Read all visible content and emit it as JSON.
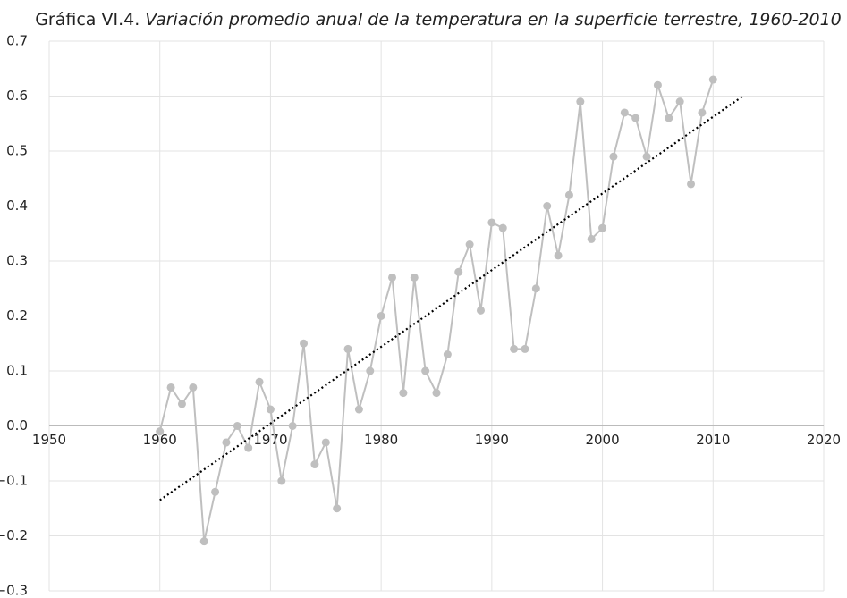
{
  "chart_data": {
    "type": "line",
    "title": "Gráfica VI.4.",
    "subtitle": "Variación promedio anual de la temperatura en la superficie terrestre, 1960-2010",
    "x": [
      1960,
      1961,
      1962,
      1963,
      1964,
      1965,
      1966,
      1967,
      1968,
      1969,
      1970,
      1971,
      1972,
      1973,
      1974,
      1975,
      1976,
      1977,
      1978,
      1979,
      1980,
      1981,
      1982,
      1983,
      1984,
      1985,
      1986,
      1987,
      1988,
      1989,
      1990,
      1991,
      1992,
      1993,
      1994,
      1995,
      1996,
      1997,
      1998,
      1999,
      2000,
      2001,
      2002,
      2003,
      2004,
      2005,
      2006,
      2007,
      2008,
      2009,
      2010
    ],
    "values": [
      -0.01,
      0.07,
      0.04,
      0.07,
      -0.21,
      -0.12,
      -0.03,
      0.0,
      -0.04,
      0.08,
      0.03,
      -0.1,
      0.0,
      0.15,
      -0.07,
      -0.03,
      -0.15,
      0.14,
      0.03,
      0.1,
      0.2,
      0.27,
      0.06,
      0.27,
      0.1,
      0.06,
      0.13,
      0.28,
      0.33,
      0.21,
      0.37,
      0.36,
      0.14,
      0.14,
      0.25,
      0.4,
      0.31,
      0.42,
      0.59,
      0.34,
      0.36,
      0.49,
      0.57,
      0.56,
      0.49,
      0.62,
      0.56,
      0.59,
      0.44,
      0.57,
      0.63
    ],
    "color": "#bfbfbf",
    "trendline": {
      "x": [
        1960,
        2012.7
      ],
      "values": [
        -0.135,
        0.6
      ],
      "color": "#000000"
    },
    "xlim": [
      1950,
      2020
    ],
    "xticks": [
      1950,
      1960,
      1970,
      1980,
      1990,
      2000,
      2010,
      2020
    ],
    "ylim": [
      -0.3,
      0.7
    ],
    "yticks": [
      0.7,
      0.6,
      0.5,
      0.4,
      0.3,
      0.2,
      0.1,
      {
        "value": 0,
        "label": "0.0"
      },
      {
        "value": -0.1,
        "label": "−0.1"
      },
      {
        "value": -0.2,
        "label": "−0.2"
      },
      {
        "value": -0.3,
        "label": "−0.3"
      }
    ],
    "grid": true
  }
}
